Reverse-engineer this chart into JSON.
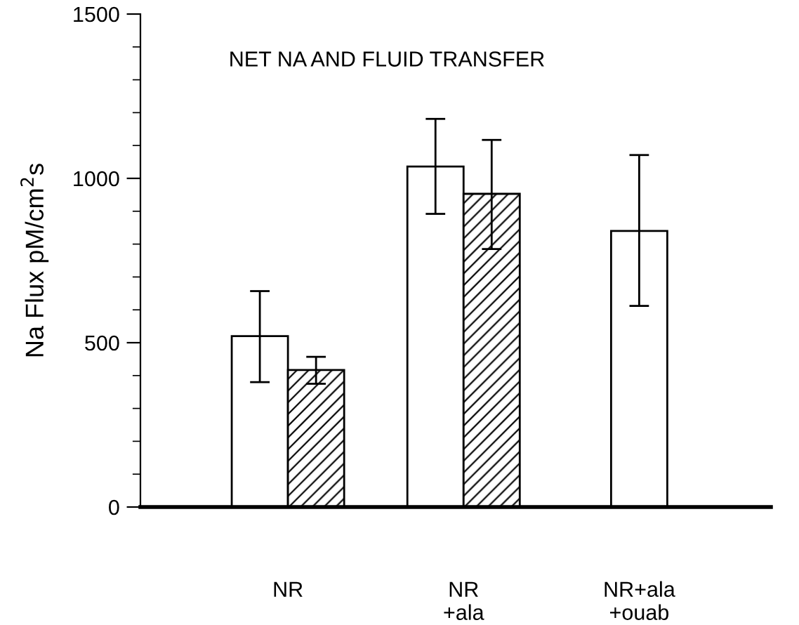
{
  "chart_data": {
    "type": "bar",
    "title": "NET NA AND FLUID TRANSFER",
    "ylabel": "Na Flux pM/cm$^{2}$s",
    "categories": [
      "NR",
      "NR\n+ala",
      "NR+ala\n+ouab"
    ],
    "series": [
      {
        "color": "#ffffff",
        "values": [
          520,
          1036,
          840
        ],
        "errors": [
          [
            380,
            657
          ],
          [
            892,
            1181
          ],
          [
            612,
            1071
          ]
        ]
      },
      {
        "color": "#000000",
        "values": [
          417,
          953,
          null
        ],
        "errors": [
          [
            375,
            457
          ],
          [
            785,
            1117
          ],
          null
        ]
      }
    ],
    "ylim": [
      0,
      1500
    ],
    "yticks": [
      0,
      500,
      1000,
      1500
    ],
    "grid": false,
    "legend": false
  }
}
